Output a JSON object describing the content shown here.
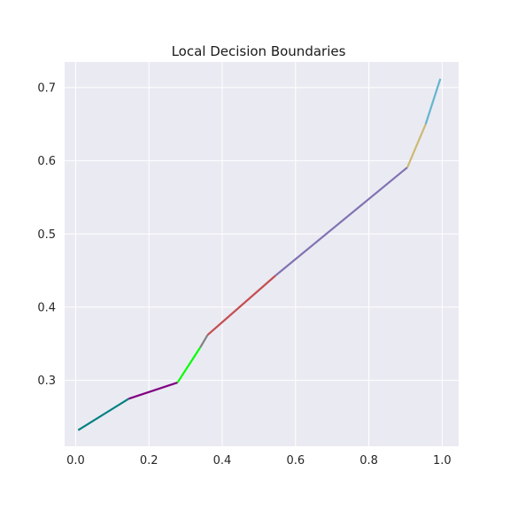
{
  "chart_data": {
    "type": "line",
    "title": "Local Decision Boundaries",
    "xlabel": "",
    "ylabel": "",
    "xlim": [
      -0.03,
      1.045
    ],
    "ylim": [
      0.21,
      0.735
    ],
    "xticks": [
      0.0,
      0.2,
      0.4,
      0.6,
      0.8,
      1.0
    ],
    "xtick_labels": [
      "0.0",
      "0.2",
      "0.4",
      "0.6",
      "0.8",
      "1.0"
    ],
    "yticks": [
      0.3,
      0.4,
      0.5,
      0.6,
      0.7
    ],
    "ytick_labels": [
      "0.3",
      "0.4",
      "0.5",
      "0.6",
      "0.7"
    ],
    "grid": true,
    "background_color": "#eaeaf2",
    "grid_color": "#ffffff",
    "series": [
      {
        "color": "#008080",
        "x": [
          0.007,
          0.145
        ],
        "y": [
          0.232,
          0.275
        ]
      },
      {
        "color": "#800080",
        "x": [
          0.145,
          0.278
        ],
        "y": [
          0.275,
          0.297
        ]
      },
      {
        "color": "#00ff00",
        "x": [
          0.278,
          0.34
        ],
        "y": [
          0.297,
          0.345
        ]
      },
      {
        "color": "#808080",
        "x": [
          0.34,
          0.36
        ],
        "y": [
          0.345,
          0.362
        ]
      },
      {
        "color": "#c44e52",
        "x": [
          0.36,
          0.545
        ],
        "y": [
          0.362,
          0.443
        ]
      },
      {
        "color": "#8172b2",
        "x": [
          0.545,
          0.905
        ],
        "y": [
          0.443,
          0.591
        ]
      },
      {
        "color": "#ccb974",
        "x": [
          0.905,
          0.955
        ],
        "y": [
          0.591,
          0.65
        ]
      },
      {
        "color": "#64b5cd",
        "x": [
          0.955,
          0.995
        ],
        "y": [
          0.65,
          0.712
        ]
      }
    ]
  }
}
